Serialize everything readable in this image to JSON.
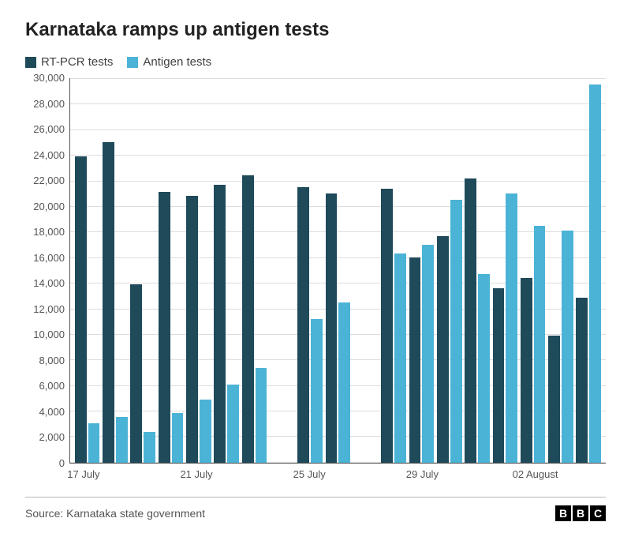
{
  "title": "Karnataka ramps up antigen tests",
  "legend": {
    "series1": {
      "label": "RT-PCR tests",
      "color": "#1e4a5a"
    },
    "series2": {
      "label": "Antigen tests",
      "color": "#4bb3d6"
    }
  },
  "chart": {
    "type": "bar",
    "background_color": "#ffffff",
    "grid_color": "#dddddd",
    "axis_color": "#555555",
    "y_axis": {
      "min": 0,
      "max": 30000,
      "step": 2000,
      "ticks": [
        "30,000",
        "28,000",
        "26,000",
        "24,000",
        "22,000",
        "20,000",
        "18,000",
        "16,000",
        "14,000",
        "12,000",
        "10,000",
        "8,000",
        "6,000",
        "4,000",
        "2,000",
        "0"
      ]
    },
    "x_axis": {
      "labels": [
        {
          "text": "17 July",
          "index": 0
        },
        {
          "text": "21 July",
          "index": 4
        },
        {
          "text": "25 July",
          "index": 8
        },
        {
          "text": "29 July",
          "index": 12
        },
        {
          "text": "02 August",
          "index": 16
        }
      ],
      "label_fontsize": 13
    },
    "groups": [
      {
        "rtpcr": 23900,
        "antigen": 3100
      },
      {
        "rtpcr": 25000,
        "antigen": 3600
      },
      {
        "rtpcr": 13900,
        "antigen": 2400
      },
      {
        "rtpcr": 21100,
        "antigen": 3900
      },
      {
        "rtpcr": 20800,
        "antigen": 4900
      },
      {
        "rtpcr": 21700,
        "antigen": 6100
      },
      {
        "rtpcr": 22400,
        "antigen": 7400
      },
      {
        "rtpcr": null,
        "antigen": null
      },
      {
        "rtpcr": 21500,
        "antigen": 11200
      },
      {
        "rtpcr": 21000,
        "antigen": 12500
      },
      {
        "rtpcr": null,
        "antigen": null
      },
      {
        "rtpcr": 21400,
        "antigen": 16300
      },
      {
        "rtpcr": 16000,
        "antigen": 17000
      },
      {
        "rtpcr": 17700,
        "antigen": 20500
      },
      {
        "rtpcr": 22200,
        "antigen": 14700
      },
      {
        "rtpcr": 13600,
        "antigen": 21000
      },
      {
        "rtpcr": 14400,
        "antigen": 18500
      },
      {
        "rtpcr": 9900,
        "antigen": 18100
      },
      {
        "rtpcr": 12900,
        "antigen": 29500
      }
    ],
    "bar_colors": {
      "rtpcr": "#1e4a5a",
      "antigen": "#4bb3d6"
    },
    "title_fontsize": 24,
    "label_fontsize": 13
  },
  "footer": {
    "source_label": "Source: Karnataka state government",
    "logo_letters": [
      "B",
      "B",
      "C"
    ]
  }
}
